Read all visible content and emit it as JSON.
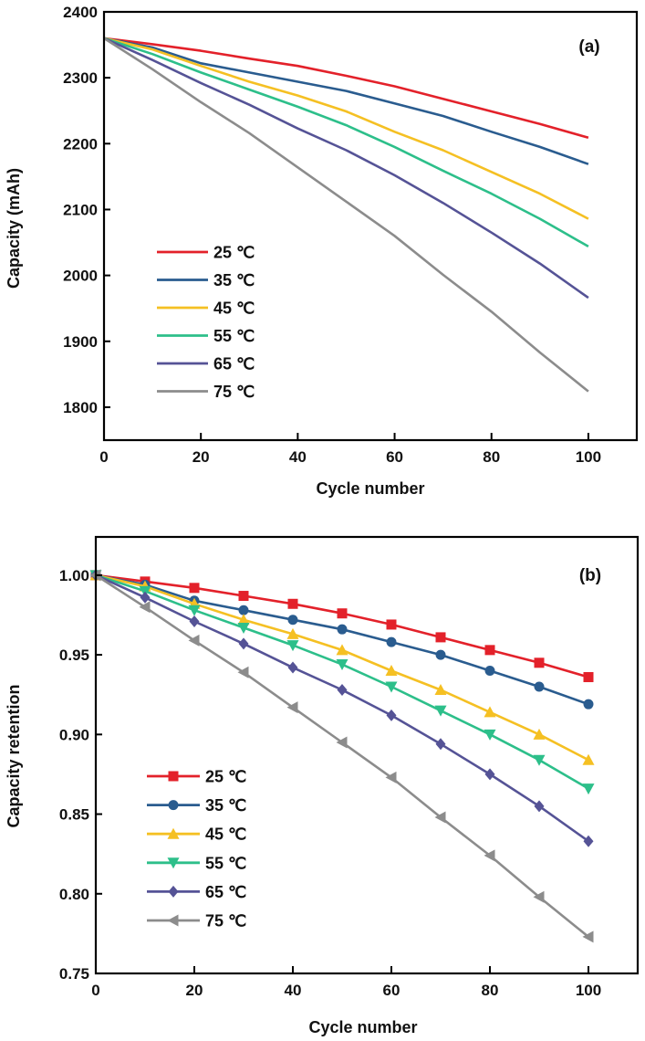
{
  "chart_data": [
    {
      "type": "line",
      "panel_label": "(a)",
      "xlabel": "Cycle number",
      "ylabel": "Capacity (mAh)",
      "xlim": [
        0,
        110
      ],
      "ylim": [
        1750,
        2400
      ],
      "xticks": [
        0,
        20,
        40,
        60,
        80,
        100
      ],
      "yticks": [
        1800,
        1900,
        2000,
        2100,
        2200,
        2300,
        2400
      ],
      "grid": false,
      "legend": "lower-left",
      "markers": false,
      "x": [
        0,
        10,
        20,
        30,
        40,
        50,
        60,
        70,
        80,
        90,
        100
      ],
      "series": [
        {
          "name": "25 ℃",
          "color": "#e3212a",
          "values": [
            2360,
            2351,
            2341,
            2329,
            2318,
            2303,
            2287,
            2268,
            2249,
            2230,
            2209
          ]
        },
        {
          "name": "35 ℃",
          "color": "#2a5c8f",
          "values": [
            2360,
            2346,
            2322,
            2308,
            2294,
            2280,
            2261,
            2242,
            2218,
            2195,
            2169
          ]
        },
        {
          "name": "45 ℃",
          "color": "#f5c023",
          "values": [
            2360,
            2343,
            2318,
            2294,
            2273,
            2249,
            2218,
            2190,
            2157,
            2124,
            2086
          ]
        },
        {
          "name": "55 ℃",
          "color": "#2dbf8a",
          "values": [
            2360,
            2336,
            2308,
            2282,
            2256,
            2228,
            2195,
            2159,
            2124,
            2086,
            2044
          ]
        },
        {
          "name": "65 ℃",
          "color": "#555396",
          "values": [
            2360,
            2327,
            2292,
            2259,
            2223,
            2190,
            2152,
            2110,
            2065,
            2018,
            1966
          ]
        },
        {
          "name": "75 ℃",
          "color": "#8c8c8c",
          "values": [
            2360,
            2313,
            2263,
            2216,
            2164,
            2112,
            2060,
            2001,
            1945,
            1883,
            1824
          ]
        }
      ]
    },
    {
      "type": "line",
      "panel_label": "(b)",
      "xlabel": "Cycle number",
      "ylabel": "Capacity retention",
      "xlim": [
        0,
        110
      ],
      "ylim": [
        0.75,
        1.024
      ],
      "xticks": [
        0,
        20,
        40,
        60,
        80,
        100
      ],
      "yticks": [
        "0.75",
        "0.80",
        "0.85",
        "0.90",
        "0.95",
        "1.00"
      ],
      "grid": false,
      "legend": "lower-left",
      "markers": true,
      "x": [
        0,
        10,
        20,
        30,
        40,
        50,
        60,
        70,
        80,
        90,
        100
      ],
      "series": [
        {
          "name": "25 ℃",
          "color": "#e3212a",
          "marker": "square",
          "values": [
            1.0,
            0.996,
            0.992,
            0.987,
            0.982,
            0.976,
            0.969,
            0.961,
            0.953,
            0.945,
            0.936
          ]
        },
        {
          "name": "35 ℃",
          "color": "#2a5c8f",
          "marker": "circle",
          "values": [
            1.0,
            0.994,
            0.984,
            0.978,
            0.972,
            0.966,
            0.958,
            0.95,
            0.94,
            0.93,
            0.919
          ]
        },
        {
          "name": "45 ℃",
          "color": "#f5c023",
          "marker": "triangle-up",
          "values": [
            1.0,
            0.993,
            0.982,
            0.972,
            0.963,
            0.953,
            0.94,
            0.928,
            0.914,
            0.9,
            0.884
          ]
        },
        {
          "name": "55 ℃",
          "color": "#2dbf8a",
          "marker": "triangle-down",
          "values": [
            1.0,
            0.99,
            0.978,
            0.967,
            0.956,
            0.944,
            0.93,
            0.915,
            0.9,
            0.884,
            0.866
          ]
        },
        {
          "name": "65 ℃",
          "color": "#555396",
          "marker": "diamond",
          "values": [
            1.0,
            0.986,
            0.971,
            0.957,
            0.942,
            0.928,
            0.912,
            0.894,
            0.875,
            0.855,
            0.833
          ]
        },
        {
          "name": "75 ℃",
          "color": "#8c8c8c",
          "marker": "triangle-left",
          "values": [
            1.0,
            0.98,
            0.959,
            0.939,
            0.917,
            0.895,
            0.873,
            0.848,
            0.824,
            0.798,
            0.773
          ]
        }
      ]
    }
  ]
}
